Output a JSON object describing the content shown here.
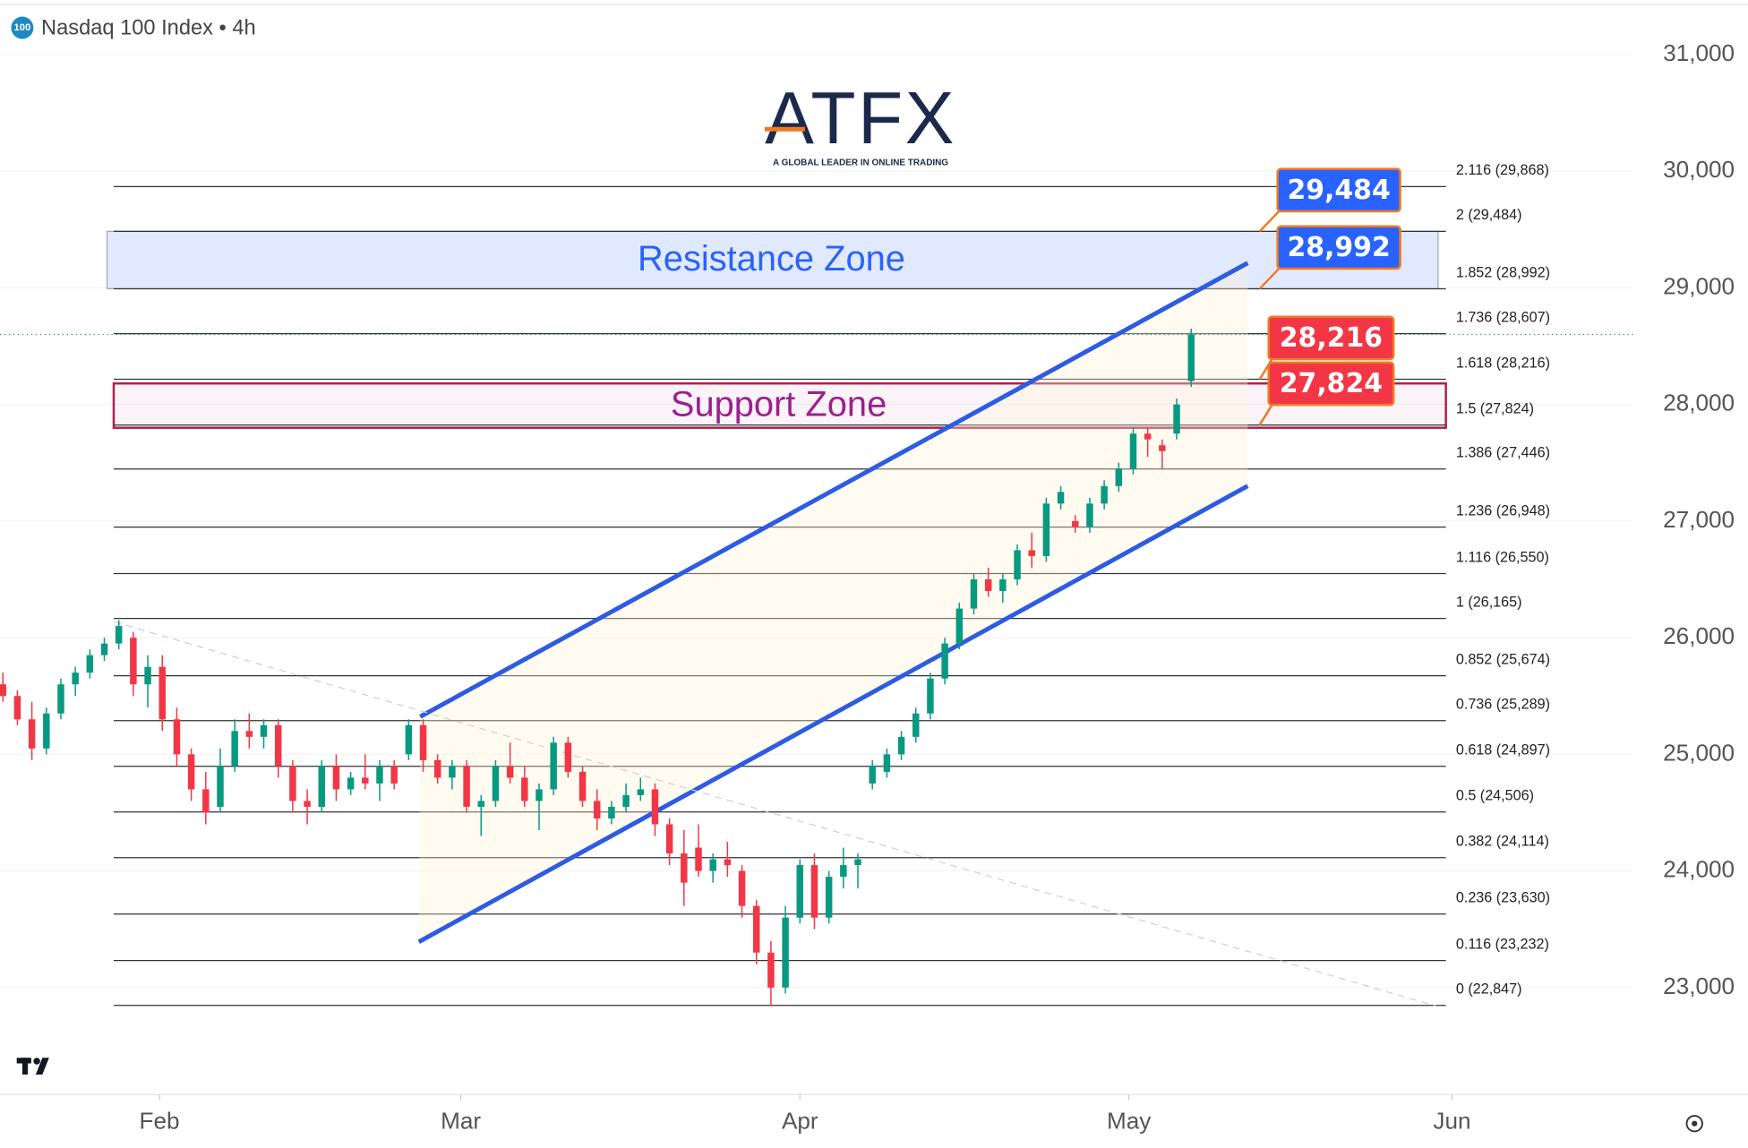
{
  "chart_data": {
    "type": "candlestick",
    "title": "Nasdaq 100 Index • 4h",
    "symbol_badge": "100",
    "logo": "ATFX",
    "tagline": "A GLOBAL LEADER IN ONLINE TRADING",
    "up_color": "#089981",
    "down_color": "#f23645",
    "open": [
      25600,
      25500,
      25300,
      25050,
      25350,
      25600,
      25700,
      25850,
      25950,
      26000,
      25600,
      25750,
      25300,
      25000,
      24700,
      24550,
      24900,
      25200,
      25150,
      25250,
      24900,
      24600,
      24550,
      24900,
      24700,
      24800,
      24750,
      24900,
      25000,
      25250,
      24950,
      24800,
      24900,
      24550,
      24600,
      24900,
      24800,
      24600,
      24700,
      25100,
      24850,
      24600,
      24450,
      24550,
      24650,
      24700,
      24400,
      24150,
      24200,
      24000,
      24100,
      24000,
      23700,
      23300,
      23000,
      23600,
      24050,
      23600,
      23950,
      24050,
      24750,
      24850,
      25000,
      25150,
      25350,
      25650,
      25950,
      26250,
      26500,
      26400,
      26500,
      26750,
      26700,
      27150,
      27000,
      26950,
      27150,
      27300,
      27450,
      27750,
      27650,
      27750,
      28200
    ],
    "high": [
      25700,
      25550,
      25450,
      25400,
      25650,
      25750,
      25900,
      26000,
      26150,
      26050,
      25850,
      25850,
      25400,
      25050,
      24850,
      25050,
      25300,
      25350,
      25300,
      25300,
      24950,
      24700,
      24950,
      25000,
      24850,
      25000,
      24950,
      24950,
      25300,
      25300,
      25000,
      24950,
      24950,
      24650,
      24950,
      25100,
      24900,
      24750,
      25150,
      25150,
      24900,
      24700,
      24600,
      24750,
      24800,
      24750,
      24450,
      24350,
      24400,
      24150,
      24250,
      24050,
      23750,
      23400,
      23700,
      24100,
      24150,
      24000,
      24200,
      24150,
      24950,
      25050,
      25200,
      25400,
      25700,
      26000,
      26300,
      26550,
      26600,
      26550,
      26800,
      26900,
      27200,
      27300,
      27050,
      27200,
      27350,
      27500,
      27800,
      27800,
      27700,
      28050,
      28650
    ],
    "low": [
      25450,
      25250,
      24950,
      25000,
      25300,
      25500,
      25650,
      25800,
      25900,
      25500,
      25400,
      25200,
      24900,
      24600,
      24400,
      24500,
      24850,
      25050,
      25050,
      24800,
      24500,
      24400,
      24500,
      24600,
      24650,
      24700,
      24600,
      24700,
      24950,
      24850,
      24750,
      24700,
      24500,
      24300,
      24550,
      24750,
      24550,
      24350,
      24650,
      24800,
      24550,
      24350,
      24400,
      24500,
      24600,
      24300,
      24050,
      23700,
      23950,
      23900,
      23950,
      23600,
      23200,
      22850,
      22950,
      23550,
      23500,
      23550,
      23850,
      23850,
      24700,
      24800,
      24950,
      25100,
      25300,
      25600,
      25900,
      26200,
      26350,
      26300,
      26450,
      26600,
      26650,
      27100,
      26900,
      26900,
      27100,
      27250,
      27400,
      27550,
      27450,
      27700,
      28150
    ],
    "close": [
      25500,
      25300,
      25050,
      25350,
      25600,
      25700,
      25850,
      25950,
      26100,
      25600,
      25750,
      25300,
      25000,
      24700,
      24500,
      24900,
      25200,
      25150,
      25250,
      24900,
      24600,
      24550,
      24900,
      24700,
      24800,
      24750,
      24900,
      24750,
      25250,
      24950,
      24800,
      24900,
      24550,
      24600,
      24900,
      24800,
      24600,
      24700,
      25100,
      24850,
      24600,
      24450,
      24550,
      24650,
      24700,
      24400,
      24150,
      23900,
      24000,
      24100,
      24050,
      23700,
      23300,
      23000,
      23600,
      24050,
      23600,
      23950,
      24050,
      24100,
      24900,
      25000,
      25150,
      25350,
      25650,
      25950,
      26250,
      26500,
      26400,
      26500,
      26750,
      26700,
      27150,
      27250,
      26950,
      27150,
      27300,
      27450,
      27750,
      27700,
      27600,
      28000,
      28600
    ],
    "xlim": [
      -0.2,
      112.5
    ],
    "xticks": [
      {
        "value": 10.8,
        "label": "Feb"
      },
      {
        "value": 31.6,
        "label": "Mar"
      },
      {
        "value": 55.0,
        "label": "Apr"
      },
      {
        "value": 77.7,
        "label": "May"
      },
      {
        "value": 100.0,
        "label": "Jun"
      }
    ],
    "ylim": [
      22025,
      31440
    ],
    "yticks": [
      {
        "value": 23000,
        "label": "23,000"
      },
      {
        "value": 24000,
        "label": "24,000"
      },
      {
        "value": 25000,
        "label": "25,000"
      },
      {
        "value": 26000,
        "label": "26,000"
      },
      {
        "value": 27000,
        "label": "27,000"
      },
      {
        "value": 28000,
        "label": "28,000"
      },
      {
        "value": 29000,
        "label": "29,000"
      },
      {
        "value": 30000,
        "label": "30,000"
      },
      {
        "value": 31000,
        "label": "31,000"
      }
    ],
    "fib_levels": [
      {
        "value": 29868,
        "label": "2.116 (29,868)"
      },
      {
        "value": 29484,
        "label": "2 (29,484)"
      },
      {
        "value": 28992,
        "label": "1.852 (28,992)"
      },
      {
        "value": 28607,
        "label": "1.736 (28,607)"
      },
      {
        "value": 28216,
        "label": "1.618 (28,216)"
      },
      {
        "value": 27824,
        "label": "1.5 (27,824)"
      },
      {
        "value": 27446,
        "label": "1.386 (27,446)"
      },
      {
        "value": 26948,
        "label": "1.236 (26,948)"
      },
      {
        "value": 26550,
        "label": "1.116 (26,550)"
      },
      {
        "value": 26165,
        "label": "1 (26,165)"
      },
      {
        "value": 25674,
        "label": "0.852 (25,674)"
      },
      {
        "value": 25289,
        "label": "0.736 (25,289)"
      },
      {
        "value": 24897,
        "label": "0.618 (24,897)"
      },
      {
        "value": 24506,
        "label": "0.5 (24,506)"
      },
      {
        "value": 24114,
        "label": "0.382 (24,114)"
      },
      {
        "value": 23630,
        "label": "0.236 (23,630)"
      },
      {
        "value": 23232,
        "label": "0.116 (23,232)"
      },
      {
        "value": 22847,
        "label": "0 (22,847)"
      }
    ],
    "zones": [
      {
        "label": "Resistance Zone",
        "range": [
          28992,
          29484
        ],
        "color": "#2962ff"
      },
      {
        "label": "Support Zone",
        "range": [
          27800,
          28180
        ],
        "color": "#9c1f8f"
      }
    ],
    "price_tags": [
      {
        "value": 29484,
        "label": "29,484",
        "color": "#2962ff"
      },
      {
        "value": 28992,
        "label": "28,992",
        "color": "#2962ff"
      },
      {
        "value": 28216,
        "label": "28,216",
        "color": "#f23645"
      },
      {
        "value": 27824,
        "label": "27,824",
        "color": "#f23645"
      }
    ],
    "trendlines": [
      {
        "x": [
          28.8,
          85.9
        ],
        "y": [
          25323,
          29213
        ],
        "color": "#2d5be3"
      },
      {
        "x": [
          28.7,
          85.9
        ],
        "y": [
          23392,
          27301
        ],
        "color": "#2d5be3"
      },
      {
        "x": [
          7.7,
          99.0
        ],
        "y": [
          26135,
          22838
        ],
        "color": "#d0d0d0"
      }
    ]
  }
}
